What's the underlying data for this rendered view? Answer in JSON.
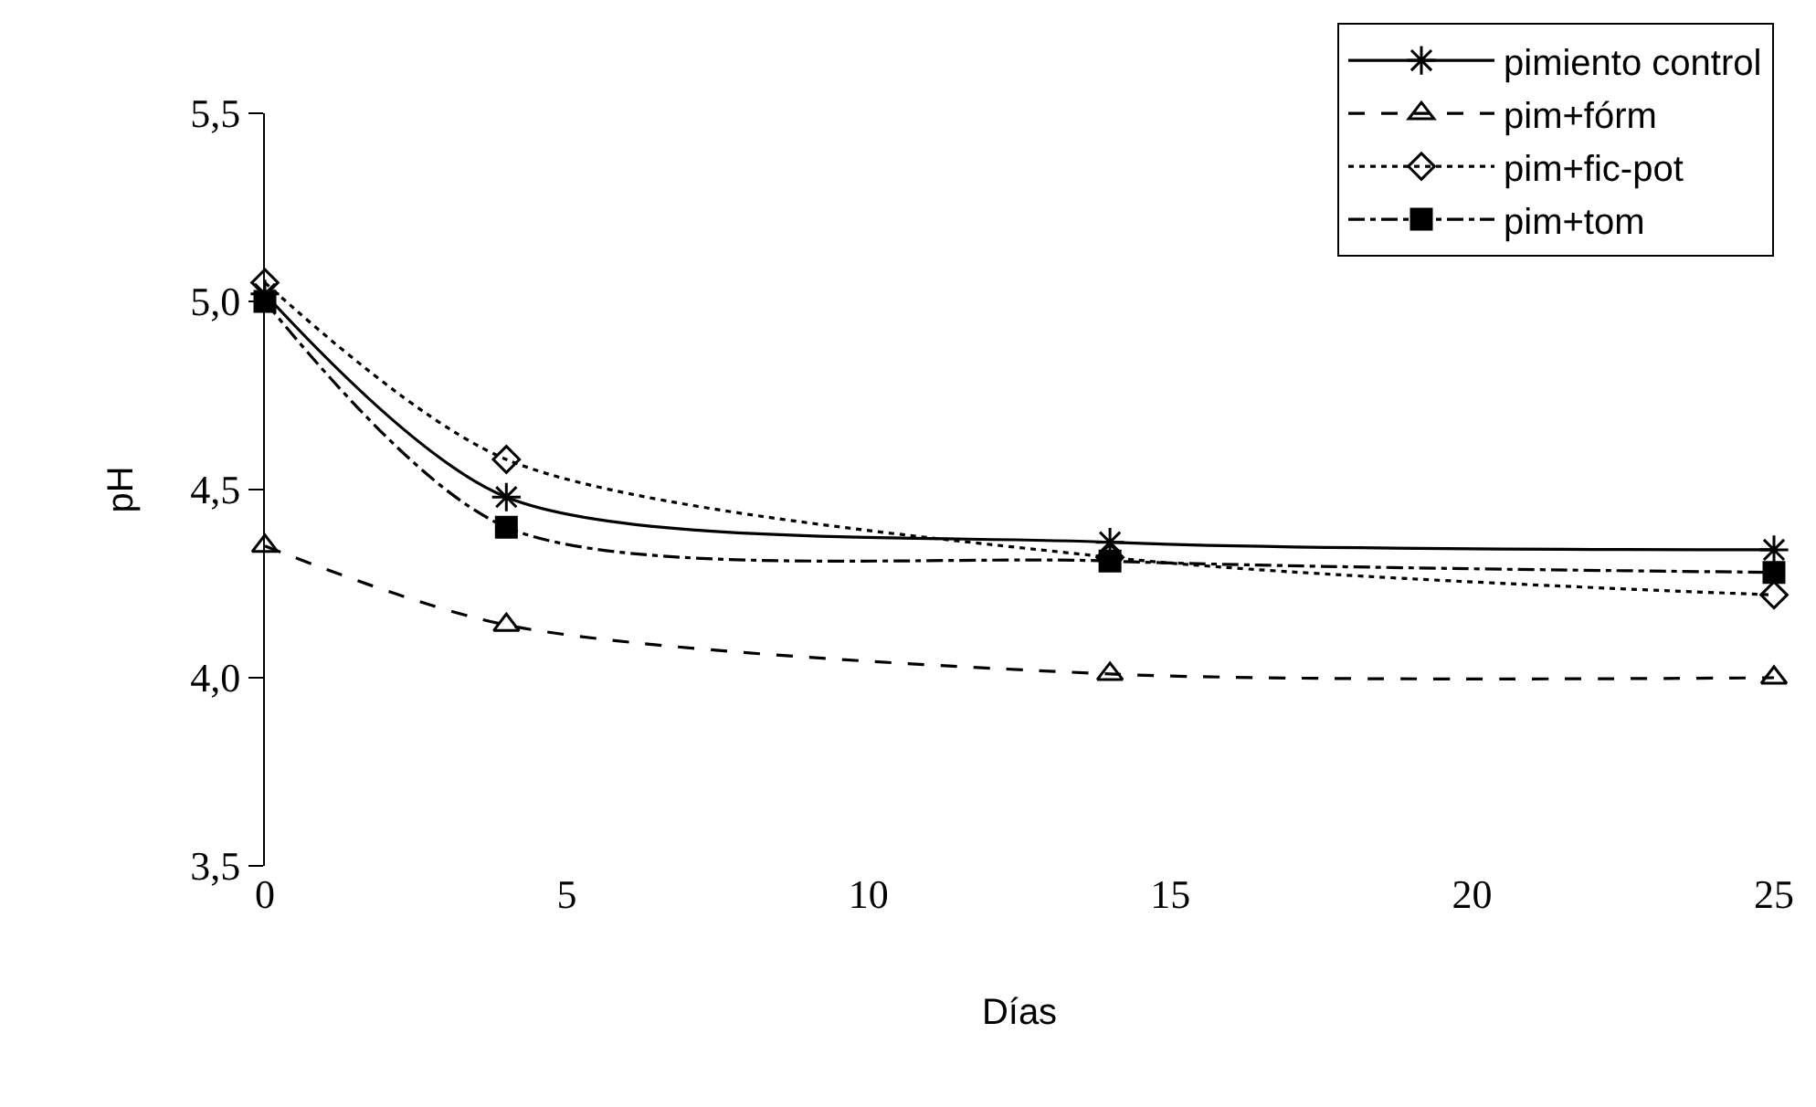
{
  "chart_data": {
    "type": "line",
    "xlabel": "Días",
    "ylabel": "pH",
    "x": [
      0,
      4,
      14,
      25
    ],
    "xlim": [
      0,
      25
    ],
    "xticks": [
      0,
      5,
      10,
      15,
      20,
      25
    ],
    "ylim": [
      3.5,
      5.5
    ],
    "yticks": [
      {
        "value": 3.5,
        "label": "3,5"
      },
      {
        "value": 4.0,
        "label": "4,0"
      },
      {
        "value": 4.5,
        "label": "4,5"
      },
      {
        "value": 5.0,
        "label": "5,0"
      },
      {
        "value": 5.5,
        "label": "5,5"
      }
    ],
    "legend": "top right",
    "series": [
      {
        "name": "pimiento control",
        "color": "#000000",
        "marker": "cross",
        "line_style": "solid",
        "values": [
          5.02,
          4.48,
          4.36,
          4.34
        ]
      },
      {
        "name": "pim+fórm",
        "color": "#000000",
        "marker": "triangle",
        "line_style": "dashed",
        "values": [
          4.35,
          4.14,
          4.01,
          4.0
        ]
      },
      {
        "name": "pim+fic-pot",
        "color": "#000000",
        "marker": "diamond",
        "line_style": "dotted",
        "values": [
          5.05,
          4.58,
          4.32,
          4.22
        ]
      },
      {
        "name": "pim+tom",
        "color": "#000000",
        "marker": "square",
        "line_style": "dashdot",
        "values": [
          5.0,
          4.4,
          4.31,
          4.28
        ]
      }
    ]
  }
}
